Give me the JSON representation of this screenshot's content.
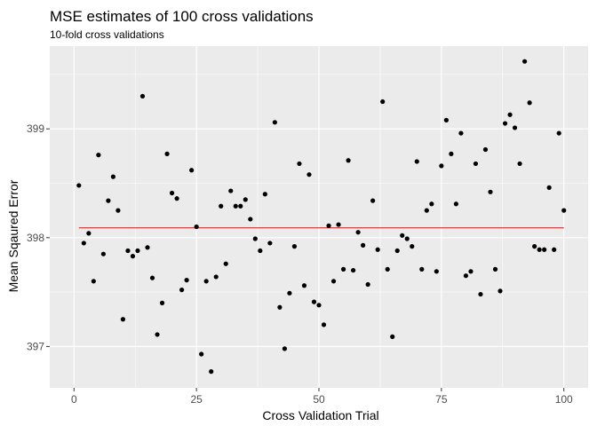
{
  "chart_data": {
    "type": "scatter",
    "title": "MSE estimates of 100 cross validations",
    "subtitle": "10-fold cross validations",
    "xlabel": "Cross Validation Trial",
    "ylabel": "Mean Sqaured Error",
    "xlim": [
      -4.95,
      104.95
    ],
    "ylim": [
      396.62,
      399.76
    ],
    "x_ticks": [
      0,
      25,
      50,
      75,
      100
    ],
    "x_tick_labels": [
      "0",
      "25",
      "50",
      "75",
      "100"
    ],
    "y_ticks": [
      397,
      398,
      399
    ],
    "y_tick_labels": [
      "397",
      "398",
      "399"
    ],
    "grid": true,
    "panel_background": "#ebebeb",
    "point_color": "#000000",
    "hline": {
      "y": 398.09,
      "color": "#ff0000"
    },
    "x": [
      1,
      2,
      3,
      4,
      5,
      6,
      7,
      8,
      9,
      10,
      11,
      12,
      13,
      14,
      15,
      16,
      17,
      18,
      19,
      20,
      21,
      22,
      23,
      24,
      25,
      26,
      27,
      28,
      29,
      30,
      31,
      32,
      33,
      34,
      35,
      36,
      37,
      38,
      39,
      40,
      41,
      42,
      43,
      44,
      45,
      46,
      47,
      48,
      49,
      50,
      51,
      52,
      53,
      54,
      55,
      56,
      57,
      58,
      59,
      60,
      61,
      62,
      63,
      64,
      65,
      66,
      67,
      68,
      69,
      70,
      71,
      72,
      73,
      74,
      75,
      76,
      77,
      78,
      79,
      80,
      81,
      82,
      83,
      84,
      85,
      86,
      87,
      88,
      89,
      90,
      91,
      92,
      93,
      94,
      95,
      96,
      97,
      98,
      99,
      100
    ],
    "y": [
      398.48,
      397.95,
      398.04,
      397.6,
      398.76,
      397.85,
      398.34,
      398.56,
      398.25,
      397.25,
      397.88,
      397.83,
      397.88,
      399.3,
      397.91,
      397.63,
      397.11,
      397.4,
      398.77,
      398.41,
      398.36,
      397.52,
      397.61,
      398.62,
      398.1,
      396.93,
      397.6,
      396.77,
      397.64,
      398.29,
      397.76,
      398.43,
      398.29,
      398.29,
      398.35,
      398.17,
      397.99,
      397.88,
      398.4,
      397.95,
      399.06,
      397.36,
      396.98,
      397.49,
      397.92,
      398.68,
      397.56,
      398.58,
      397.41,
      397.38,
      397.2,
      398.11,
      397.6,
      398.12,
      397.71,
      398.71,
      397.7,
      398.05,
      397.93,
      397.57,
      398.34,
      397.89,
      399.25,
      397.71,
      397.09,
      397.88,
      398.02,
      397.99,
      397.92,
      398.7,
      397.71,
      398.25,
      398.31,
      397.69,
      398.66,
      399.08,
      398.77,
      398.31,
      398.96,
      397.65,
      397.69,
      398.68,
      397.48,
      398.81,
      398.42,
      397.71,
      397.51,
      399.05,
      399.13,
      399.01,
      398.68,
      399.62,
      399.24,
      397.92,
      397.89,
      397.89,
      398.46,
      397.89,
      398.96,
      398.25
    ]
  }
}
